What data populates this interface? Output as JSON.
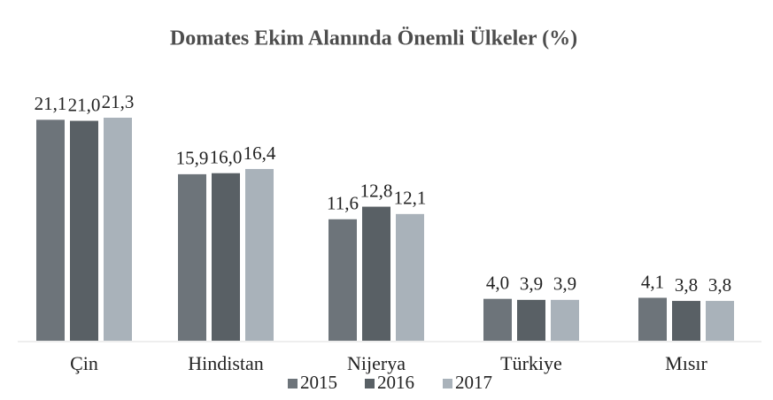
{
  "chart_data": {
    "type": "bar",
    "title": "Domates Ekim Alanında Önemli Ülkeler (%)",
    "categories": [
      "Çin",
      "Hindistan",
      "Nijerya",
      "Türkiye",
      "Mısır"
    ],
    "series": [
      {
        "name": "2015",
        "color": "#6d747a",
        "values": [
          21.1,
          15.9,
          11.6,
          4.0,
          4.1
        ],
        "value_labels": [
          "21,1",
          "15,9",
          "11,6",
          "4,0",
          "4,1"
        ]
      },
      {
        "name": "2016",
        "color": "#596065",
        "values": [
          21.0,
          16.0,
          12.8,
          3.9,
          3.8
        ],
        "value_labels": [
          "21,0",
          "16,0",
          "12,8",
          "3,9",
          "3,8"
        ]
      },
      {
        "name": "2017",
        "color": "#a9b2ba",
        "values": [
          21.3,
          16.4,
          12.1,
          3.9,
          3.8
        ],
        "value_labels": [
          "21,3",
          "16,4",
          "12,1",
          "3,9",
          "3,8"
        ]
      }
    ],
    "legend": "bottom"
  }
}
